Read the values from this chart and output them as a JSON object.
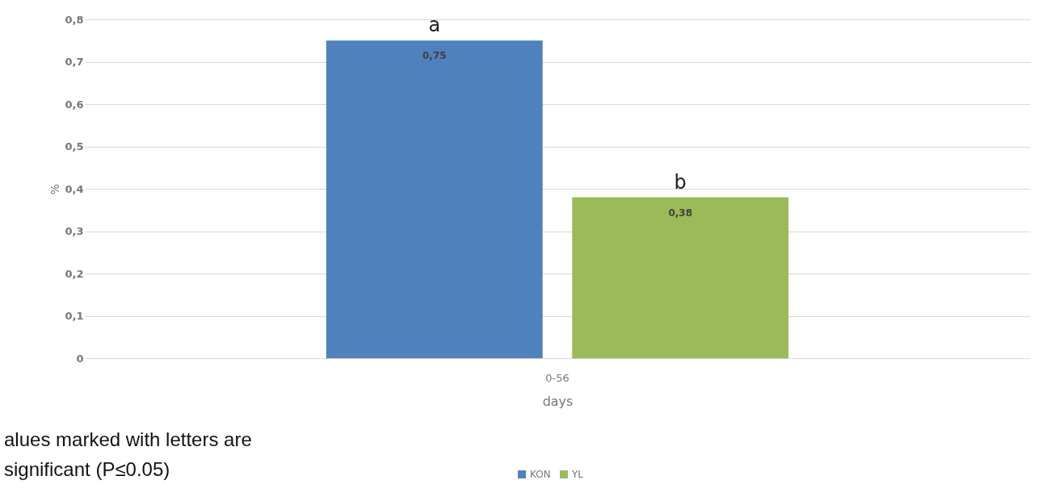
{
  "chart_data": {
    "type": "bar",
    "xlabel": "days",
    "ylabel": "%",
    "categories": [
      "0-56"
    ],
    "series": [
      {
        "name": "KON",
        "color": "#4f81bd",
        "values": [
          0.75
        ],
        "value_labels": [
          "0,75"
        ]
      },
      {
        "name": "YL",
        "color": "#9bbb59",
        "values": [
          0.38
        ],
        "value_labels": [
          "0,38"
        ]
      }
    ],
    "ylim": [
      0,
      0.8
    ],
    "yticks": [
      0,
      {
        "value": 0.1,
        "label": "0,1"
      },
      {
        "value": 0.2,
        "label": "0,2"
      },
      {
        "value": 0.3,
        "label": "0,3"
      },
      {
        "value": 0.4,
        "label": "0,4"
      },
      {
        "value": 0.5,
        "label": "0,5"
      },
      {
        "value": 0.6,
        "label": "0,6"
      },
      {
        "value": 0.7,
        "label": "0,7"
      },
      {
        "value": 0.8,
        "label": "0,8"
      }
    ],
    "grid": "y",
    "legend": "bottom",
    "annotations": [
      "a",
      "b",
      "alues marked with letters are",
      "significant (P≤0.05)"
    ]
  }
}
